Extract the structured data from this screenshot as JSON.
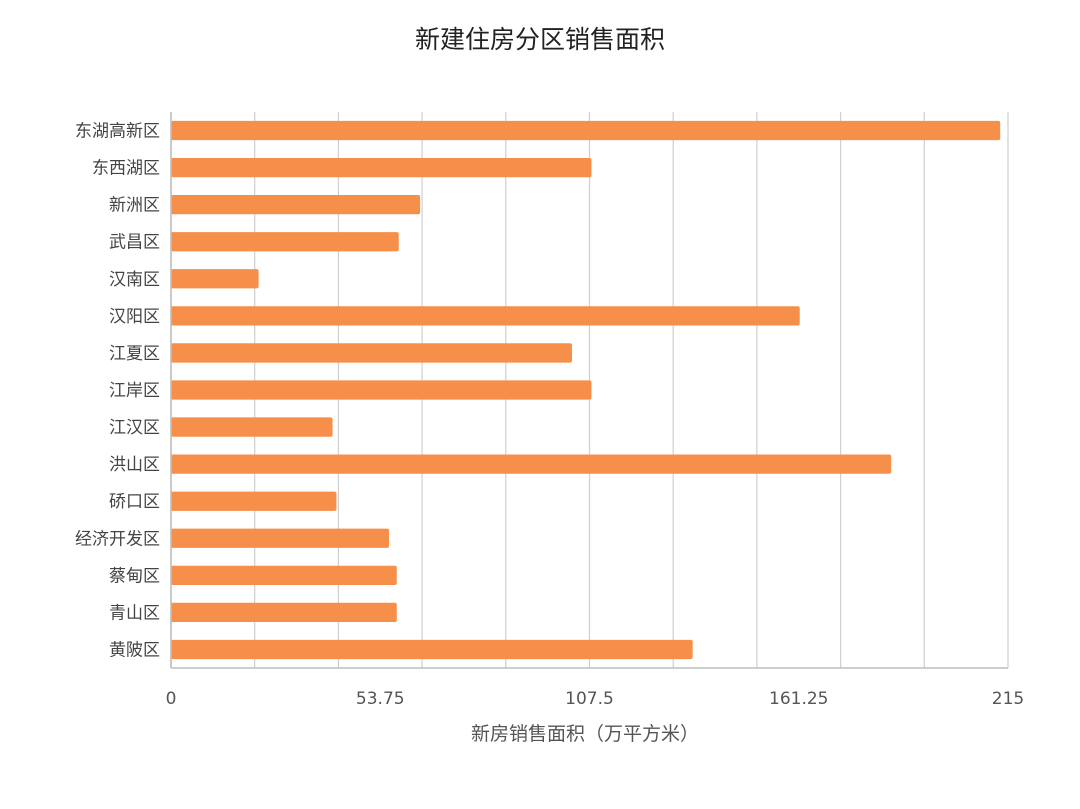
{
  "chart_data": {
    "type": "bar",
    "orientation": "horizontal",
    "title": "新建住房分区销售面积",
    "xlabel": "新房销售面积（万平方米）",
    "ylabel": "",
    "categories": [
      "东湖高新区",
      "东西湖区",
      "新洲区",
      "武昌区",
      "汉南区",
      "汉阳区",
      "江夏区",
      "江岸区",
      "江汉区",
      "洪山区",
      "硚口区",
      "经济开发区",
      "蔡甸区",
      "青山区",
      "黄陂区"
    ],
    "values": [
      213,
      108,
      64,
      58.5,
      22.5,
      161.5,
      103,
      108,
      41.5,
      185,
      42.5,
      56,
      58,
      58,
      134
    ],
    "xlim": [
      0,
      215
    ],
    "ticks": [
      0,
      53.75,
      107.5,
      161.25,
      215
    ],
    "tick_labels": [
      "0",
      "53.75",
      "107.5",
      "161.25",
      "215"
    ],
    "minor_grid_step": 21.5,
    "grid": true,
    "legend": "none",
    "bar_color": "#f58f4a"
  }
}
